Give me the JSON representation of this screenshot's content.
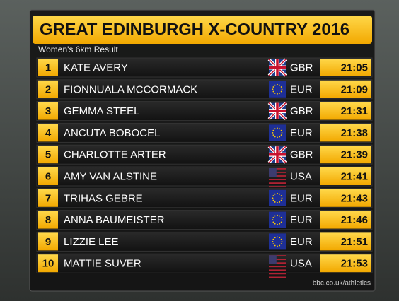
{
  "header": {
    "title": "GREAT EDINBURGH X-COUNTRY 2016",
    "subtitle": "Women's 6km Result"
  },
  "table": {
    "rows": [
      [
        "1",
        "KATE AVERY",
        "GBR",
        "21:05"
      ],
      [
        "2",
        "FIONNUALA MCCORMACK",
        "EUR",
        "21:09"
      ],
      [
        "3",
        "GEMMA STEEL",
        "GBR",
        "21:31"
      ],
      [
        "4",
        "ANCUTA BOBOCEL",
        "EUR",
        "21:38"
      ],
      [
        "5",
        "CHARLOTTE ARTER",
        "GBR",
        "21:39"
      ],
      [
        "6",
        "AMY VAN ALSTINE",
        "USA",
        "21:41"
      ],
      [
        "7",
        "TRIHAS GEBRE",
        "EUR",
        "21:43"
      ],
      [
        "8",
        "ANNA BAUMEISTER",
        "EUR",
        "21:46"
      ],
      [
        "9",
        "LIZZIE LEE",
        "EUR",
        "21:51"
      ],
      [
        "10",
        "MATTIE SUVER",
        "USA",
        "21:53"
      ]
    ]
  },
  "footer": {
    "source": "bbc.co.uk/athletics"
  }
}
